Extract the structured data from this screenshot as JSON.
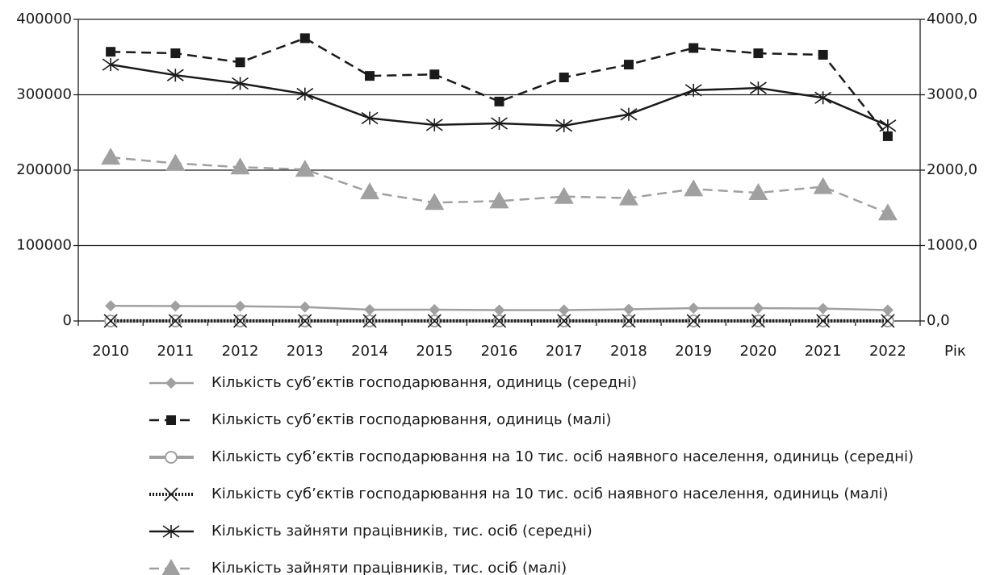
{
  "chart_data": {
    "type": "line",
    "categories": [
      "2010",
      "2011",
      "2012",
      "2013",
      "2014",
      "2015",
      "2016",
      "2017",
      "2018",
      "2019",
      "2020",
      "2021",
      "2022"
    ],
    "xlabel": "Рік",
    "ylim": [
      0,
      400000
    ],
    "yticks": [
      0,
      100000,
      200000,
      300000,
      400000
    ],
    "y2lim": [
      0,
      4000
    ],
    "y2ticks": [
      {
        "value": 0,
        "label": "0,0"
      },
      {
        "value": 1000,
        "label": "1000,0"
      },
      {
        "value": 2000,
        "label": "2000,0"
      },
      {
        "value": 3000,
        "label": "3000,0"
      },
      {
        "value": 4000,
        "label": "4000,0"
      }
    ],
    "grid": true,
    "series": [
      {
        "name": "Кількість суб’єктів господарювання, одиниць (середні)",
        "color": "#a0a0a0",
        "marker": "diamond",
        "line_style": "solid",
        "values": [
          20000,
          19800,
          19500,
          18500,
          15000,
          15000,
          14500,
          14500,
          15500,
          17000,
          17000,
          16500,
          14500
        ]
      },
      {
        "name": "Кількість суб’єктів господарювання, одиниць (малі)",
        "color": "#1a1a1a",
        "marker": "square",
        "line_style": "dashed",
        "values": [
          357000,
          355000,
          343000,
          375000,
          325000,
          327000,
          291000,
          323000,
          340000,
          362000,
          355000,
          353000,
          245000
        ]
      },
      {
        "name": "Кількість суб’єктів господарювання на 10 тис. осіб наявного населення, одиниць (середні)",
        "color": "#a0a0a0",
        "marker": "circle",
        "line_style": "solid",
        "values": [
          4.4,
          4.4,
          4.4,
          4.3,
          3.6,
          3.6,
          3.4,
          3.4,
          3.7,
          4.1,
          4.1,
          4.0,
          3.6
        ]
      },
      {
        "name": "Кількість суб’єктів господарювання на 10 тис. осіб наявного населення, одиниць (малі)",
        "color": "#1a1a1a",
        "marker": "x",
        "line_style": "dotted",
        "values": [
          78,
          77,
          76,
          86,
          76,
          77,
          69,
          77,
          80,
          87,
          85,
          85,
          60
        ]
      },
      {
        "name": "Кількість  зайняти працівників, тис. осіб (середні)",
        "color": "#1a1a1a",
        "marker": "asterisk",
        "line_style": "solid",
        "axis": "y2",
        "values": [
          3400,
          3260,
          3150,
          3010,
          2690,
          2600,
          2620,
          2590,
          2740,
          3060,
          3090,
          2960,
          2590
        ]
      },
      {
        "name": "Кількість  зайняти працівників, тис. осіб (малі)",
        "color": "#a0a0a0",
        "marker": "triangle",
        "line_style": "dashed",
        "axis": "y2",
        "values": [
          2170,
          2090,
          2040,
          2010,
          1710,
          1570,
          1590,
          1650,
          1630,
          1750,
          1700,
          1780,
          1430
        ]
      }
    ]
  }
}
